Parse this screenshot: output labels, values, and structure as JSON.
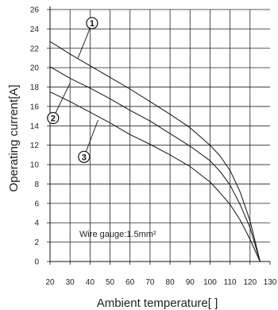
{
  "chart_data": {
    "type": "line",
    "title": "",
    "xlabel": "Ambient temperature[   ]",
    "ylabel": "Operating current[A]",
    "x_ticks": [
      "20",
      "30",
      "40",
      "50",
      "60",
      "70",
      "80",
      "90",
      "100",
      "110",
      "120",
      "130"
    ],
    "y_ticks": [
      "0",
      "2",
      "4",
      "6",
      "8",
      "10",
      "12",
      "14",
      "16",
      "18",
      "20",
      "22",
      "24",
      "26"
    ],
    "xlim": [
      20,
      130
    ],
    "ylim": [
      0,
      26
    ],
    "grid": true,
    "annotation": "Wire gauge:1.5mm²",
    "series": [
      {
        "name": "1",
        "x": [
          20,
          30,
          40,
          50,
          60,
          70,
          80,
          90,
          100,
          105,
          110,
          115,
          120,
          125
        ],
        "y": [
          22.7,
          21.4,
          20.2,
          19.0,
          17.8,
          16.5,
          15.2,
          13.8,
          12.0,
          10.9,
          9.4,
          7.2,
          4.2,
          0
        ]
      },
      {
        "name": "2",
        "x": [
          20,
          30,
          40,
          50,
          60,
          70,
          80,
          90,
          100,
          105,
          110,
          115,
          120,
          125
        ],
        "y": [
          20.1,
          18.9,
          17.9,
          16.8,
          15.6,
          14.5,
          13.2,
          11.9,
          10.4,
          9.3,
          7.9,
          5.9,
          3.5,
          0
        ]
      },
      {
        "name": "3",
        "x": [
          20,
          30,
          40,
          50,
          60,
          70,
          80,
          90,
          100,
          105,
          110,
          115,
          120,
          125
        ],
        "y": [
          17.5,
          16.5,
          15.4,
          14.3,
          13.1,
          12.1,
          11.0,
          9.8,
          8.2,
          7.1,
          5.9,
          4.3,
          2.3,
          0
        ]
      }
    ],
    "markers": [
      {
        "label": "1",
        "x": 41,
        "y": 24.6,
        "target_x": 34,
        "target_y": 21.0
      },
      {
        "label": "2",
        "x": 21.5,
        "y": 14.8,
        "target_x": 30,
        "target_y": 18.4
      },
      {
        "label": "3",
        "x": 37,
        "y": 10.8,
        "target_x": 44,
        "target_y": 14.6
      }
    ]
  }
}
